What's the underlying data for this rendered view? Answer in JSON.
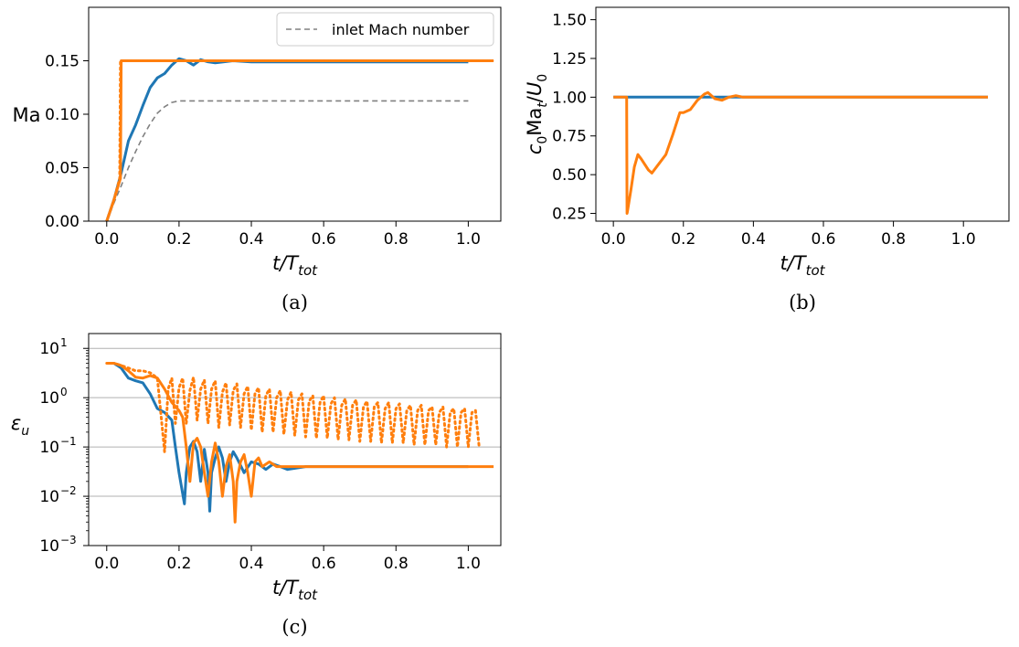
{
  "colors": {
    "blue": "#1f77b4",
    "orange": "#ff7f0e",
    "gray": "#808080",
    "grid": "#b0b0b0"
  },
  "chart_data": [
    {
      "id": "a",
      "type": "line",
      "caption": "(a)",
      "xlabel": "t/T",
      "xlabel_sub": "tot",
      "ylabel": "Ma",
      "xlim": [
        -0.05,
        1.09
      ],
      "ylim": [
        0,
        0.2
      ],
      "xticks": [
        "0.0",
        "0.2",
        "0.4",
        "0.6",
        "0.8",
        "1.0"
      ],
      "yticks": [
        "0.00",
        "0.05",
        "0.10",
        "0.15"
      ],
      "legend": {
        "label": "inlet Mach number",
        "position": "upper right"
      },
      "series": [
        {
          "name": "inlet Mach number",
          "color": "gray",
          "style": "dashed",
          "x": [
            0,
            0.02,
            0.04,
            0.06,
            0.08,
            0.1,
            0.12,
            0.14,
            0.16,
            0.18,
            0.2,
            1.0
          ],
          "y": [
            0,
            0.017,
            0.033,
            0.05,
            0.065,
            0.079,
            0.091,
            0.101,
            0.107,
            0.111,
            0.1125,
            0.1125
          ]
        },
        {
          "color": "blue",
          "style": "solid",
          "x": [
            0,
            0.02,
            0.04,
            0.06,
            0.08,
            0.1,
            0.12,
            0.14,
            0.16,
            0.18,
            0.2,
            0.22,
            0.24,
            0.26,
            0.28,
            0.3,
            0.35,
            0.4,
            1.0
          ],
          "y": [
            0,
            0.02,
            0.045,
            0.075,
            0.09,
            0.108,
            0.125,
            0.134,
            0.138,
            0.146,
            0.152,
            0.15,
            0.146,
            0.151,
            0.149,
            0.148,
            0.15,
            0.149,
            0.149
          ]
        },
        {
          "color": "orange",
          "style": "solid",
          "x": [
            0,
            0.02,
            0.038,
            0.04,
            0.042,
            0.06,
            1.07
          ],
          "y": [
            0,
            0.02,
            0.04,
            0.15,
            0.15,
            0.15,
            0.15
          ]
        },
        {
          "color": "orange",
          "style": "dotted",
          "x": [
            0,
            0.02,
            0.036,
            0.038,
            0.04,
            0.06,
            1.07
          ],
          "y": [
            0,
            0.02,
            0.04,
            0.149,
            0.15,
            0.15,
            0.15
          ]
        }
      ]
    },
    {
      "id": "b",
      "type": "line",
      "caption": "(b)",
      "xlabel": "t/T",
      "xlabel_sub": "tot",
      "ylabel": "c0Mat/U0",
      "xlim": [
        -0.05,
        1.13
      ],
      "ylim": [
        0.2,
        1.58
      ],
      "xticks": [
        "0.0",
        "0.2",
        "0.4",
        "0.6",
        "0.8",
        "1.0"
      ],
      "yticks": [
        "0.25",
        "0.50",
        "0.75",
        "1.00",
        "1.25",
        "1.50"
      ],
      "series": [
        {
          "color": "blue",
          "style": "solid",
          "x": [
            0,
            1.07
          ],
          "y": [
            1.0,
            1.0
          ]
        },
        {
          "color": "orange",
          "style": "solid",
          "x": [
            0,
            0.038,
            0.039,
            0.04,
            0.05,
            0.06,
            0.07,
            0.08,
            0.1,
            0.11,
            0.13,
            0.15,
            0.17,
            0.19,
            0.2,
            0.22,
            0.24,
            0.26,
            0.27,
            0.29,
            0.31,
            0.33,
            0.35,
            0.37,
            0.4,
            0.45,
            1.07
          ],
          "y": [
            1.0,
            1.0,
            0.25,
            0.26,
            0.4,
            0.55,
            0.63,
            0.6,
            0.53,
            0.51,
            0.57,
            0.63,
            0.76,
            0.9,
            0.9,
            0.92,
            0.98,
            1.02,
            1.03,
            0.99,
            0.98,
            1.0,
            1.01,
            1.0,
            1.0,
            1.0,
            1.0
          ]
        }
      ]
    },
    {
      "id": "c",
      "type": "line",
      "caption": "(c)",
      "xlabel": "t/T",
      "xlabel_sub": "tot",
      "ylabel": "εu",
      "yscale": "log",
      "xlim": [
        -0.05,
        1.09
      ],
      "ylim": [
        0.001,
        20
      ],
      "xticks": [
        "0.0",
        "0.2",
        "0.4",
        "0.6",
        "0.8",
        "1.0"
      ],
      "yticks": [
        "10^1",
        "10^0",
        "10^-1",
        "10^-2",
        "10^-3"
      ],
      "grid": "y",
      "series": [
        {
          "color": "blue",
          "style": "solid",
          "x": [
            0,
            0.02,
            0.04,
            0.06,
            0.08,
            0.1,
            0.12,
            0.14,
            0.16,
            0.18,
            0.19,
            0.2,
            0.215,
            0.22,
            0.23,
            0.24,
            0.25,
            0.26,
            0.27,
            0.28,
            0.285,
            0.29,
            0.3,
            0.31,
            0.32,
            0.33,
            0.34,
            0.35,
            0.36,
            0.38,
            0.4,
            0.42,
            0.44,
            0.46,
            0.48,
            0.5,
            0.55,
            0.6,
            1.0
          ],
          "y": [
            5,
            5,
            4,
            2.5,
            2.2,
            2.0,
            1.2,
            0.6,
            0.5,
            0.35,
            0.1,
            0.03,
            0.007,
            0.03,
            0.1,
            0.13,
            0.08,
            0.02,
            0.09,
            0.03,
            0.005,
            0.03,
            0.06,
            0.1,
            0.06,
            0.02,
            0.05,
            0.08,
            0.06,
            0.03,
            0.05,
            0.045,
            0.035,
            0.045,
            0.04,
            0.035,
            0.04,
            0.04,
            0.04
          ]
        },
        {
          "color": "orange",
          "style": "solid",
          "x": [
            0,
            0.02,
            0.04,
            0.06,
            0.08,
            0.1,
            0.12,
            0.14,
            0.16,
            0.18,
            0.2,
            0.21,
            0.22,
            0.23,
            0.24,
            0.25,
            0.26,
            0.27,
            0.28,
            0.29,
            0.3,
            0.31,
            0.32,
            0.33,
            0.34,
            0.35,
            0.355,
            0.36,
            0.37,
            0.38,
            0.39,
            0.4,
            0.41,
            0.42,
            0.43,
            0.45,
            0.47,
            0.5,
            0.55,
            1.07
          ],
          "y": [
            5,
            5,
            4.5,
            3.5,
            2.6,
            2.5,
            2.8,
            2.5,
            1.5,
            0.8,
            0.55,
            0.4,
            0.1,
            0.02,
            0.12,
            0.15,
            0.1,
            0.03,
            0.01,
            0.05,
            0.12,
            0.05,
            0.01,
            0.04,
            0.07,
            0.02,
            0.003,
            0.02,
            0.05,
            0.07,
            0.03,
            0.01,
            0.05,
            0.06,
            0.04,
            0.05,
            0.04,
            0.04,
            0.04,
            0.04
          ]
        },
        {
          "color": "orange",
          "style": "dotted",
          "x": [
            0,
            0.02,
            0.04,
            0.06,
            0.08,
            0.1,
            0.12,
            0.14,
            0.16,
            0.17,
            0.18,
            0.19,
            0.2,
            0.21,
            0.22,
            0.23,
            0.24,
            0.25,
            0.26,
            0.27,
            0.28,
            0.29,
            0.3,
            0.31,
            0.32,
            0.33,
            0.34,
            0.35,
            0.36,
            0.37,
            0.38,
            0.39,
            0.4,
            0.41,
            0.42,
            0.43,
            0.44,
            0.45,
            0.46,
            0.47,
            0.48,
            0.49,
            0.5,
            0.51,
            0.52,
            0.53,
            0.54,
            0.55,
            0.56,
            0.57,
            0.58,
            0.59,
            0.6,
            0.61,
            0.62,
            0.63,
            0.64,
            0.65,
            0.66,
            0.67,
            0.68,
            0.69,
            0.7,
            0.71,
            0.72,
            0.73,
            0.74,
            0.75,
            0.76,
            0.77,
            0.78,
            0.79,
            0.8,
            0.81,
            0.82,
            0.83,
            0.84,
            0.85,
            0.86,
            0.87,
            0.88,
            0.89,
            0.9,
            0.91,
            0.92,
            0.93,
            0.94,
            0.95,
            0.96,
            0.97,
            0.98,
            0.99,
            1.0,
            1.01,
            1.02,
            1.03
          ],
          "y": [
            5,
            5,
            4.5,
            4,
            3.5,
            3.5,
            3.2,
            2.5,
            0.08,
            1.5,
            2.5,
            0.3,
            1.6,
            2.5,
            0.3,
            1.4,
            2.6,
            0.35,
            1.5,
            2.3,
            0.3,
            1.5,
            2.2,
            0.25,
            1.3,
            2.0,
            0.28,
            1.4,
            1.9,
            0.25,
            1.2,
            1.7,
            0.22,
            1.2,
            1.6,
            0.2,
            1.1,
            1.5,
            0.2,
            1.0,
            1.4,
            0.18,
            0.9,
            1.3,
            0.17,
            0.9,
            1.2,
            0.16,
            0.85,
            1.1,
            0.15,
            0.8,
            1.1,
            0.15,
            0.75,
            1.0,
            0.14,
            0.7,
            0.95,
            0.14,
            0.7,
            0.9,
            0.13,
            0.65,
            0.85,
            0.13,
            0.65,
            0.8,
            0.12,
            0.6,
            0.8,
            0.12,
            0.6,
            0.75,
            0.12,
            0.55,
            0.7,
            0.11,
            0.55,
            0.7,
            0.11,
            0.55,
            0.65,
            0.11,
            0.5,
            0.65,
            0.1,
            0.5,
            0.6,
            0.1,
            0.5,
            0.6,
            0.1,
            0.5,
            0.55,
            0.1
          ]
        }
      ]
    }
  ]
}
